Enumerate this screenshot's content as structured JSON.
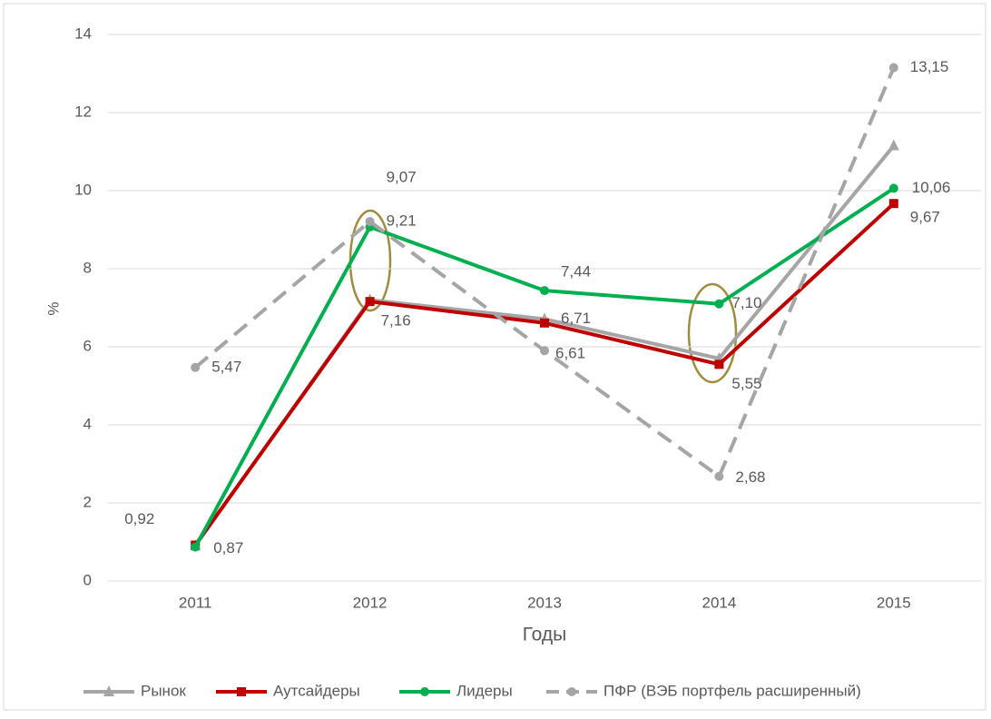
{
  "chart_data": {
    "type": "line",
    "categories": [
      "2011",
      "2012",
      "2013",
      "2014",
      "2015"
    ],
    "x_label": "Годы",
    "y_label": "%",
    "ylim": [
      0,
      14
    ],
    "yticks": [
      0,
      2,
      4,
      6,
      8,
      10,
      12,
      14
    ],
    "grid": true,
    "legend": "bottom",
    "series": [
      {
        "name": "Рынок",
        "color": "#a5a5a5",
        "marker": "triangle",
        "line_style": "solid",
        "values": [
          0.9,
          7.2,
          6.71,
          5.7,
          11.15
        ],
        "value_labels": [
          null,
          null,
          "6,71",
          null,
          null
        ]
      },
      {
        "name": "Аутсайдеры",
        "color": "#c00000",
        "marker": "square",
        "line_style": "solid",
        "values": [
          0.92,
          7.16,
          6.61,
          5.55,
          9.67
        ],
        "value_labels": [
          "0,92",
          "7,16",
          "6,61",
          "5,55",
          "9,67"
        ]
      },
      {
        "name": "Лидеры",
        "color": "#00b050",
        "marker": "circle",
        "line_style": "solid",
        "values": [
          0.87,
          9.07,
          7.44,
          7.1,
          10.06
        ],
        "value_labels": [
          "0,87",
          "9,07",
          "7,44",
          "7,10",
          "10,06"
        ]
      },
      {
        "name": "ПФР (ВЭБ портфель расширенный)",
        "color": "#a5a5a5",
        "marker": "circle",
        "line_style": "dashed",
        "values": [
          5.47,
          9.21,
          5.9,
          2.68,
          13.15
        ],
        "value_labels": [
          "5,47",
          "9,21",
          null,
          "2,68",
          "13,15"
        ]
      }
    ]
  }
}
